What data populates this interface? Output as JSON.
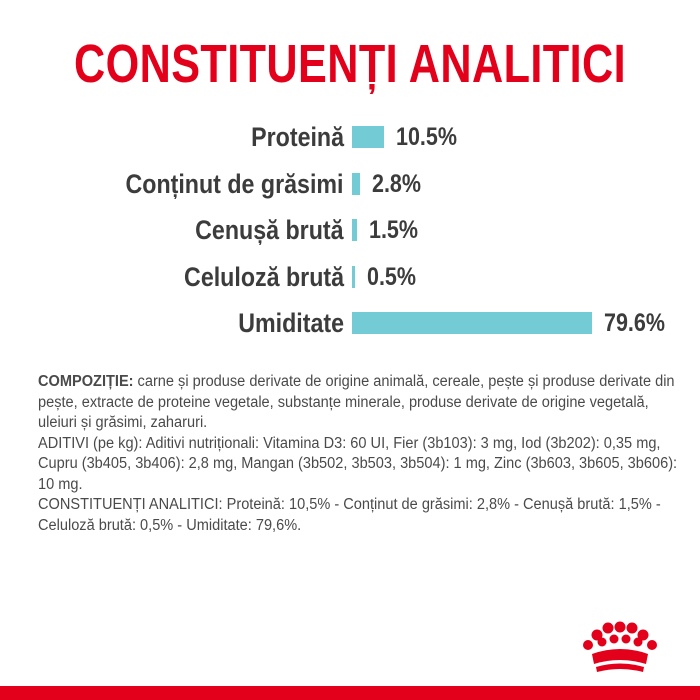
{
  "title": "CONSTITUENȚI ANALITICI",
  "chart_data": {
    "type": "bar",
    "orientation": "horizontal",
    "categories": [
      "Proteină",
      "Conținut de grăsimi",
      "Cenușă brută",
      "Celuloză brută",
      "Umiditate"
    ],
    "values": [
      10.5,
      2.8,
      1.5,
      0.5,
      79.6
    ],
    "value_labels": [
      "10.5%",
      "2.8%",
      "1.5%",
      "0.5%",
      "79.6%"
    ],
    "unit": "%",
    "xlim": [
      0,
      79.6
    ],
    "color": "#73cbd6",
    "grid": false,
    "legend": "none"
  },
  "composition": {
    "heading": "COMPOZIȚIE:",
    "composition_text": " carne și produse derivate de origine animală, cereale, pește și produse derivate din pește, extracte de proteine vegetale, substanțe minerale, produse derivate de origine vegetală, uleiuri și grăsimi, zaharuri.",
    "additives_text": "ADITIVI (pe kg): Aditivi nutriționali: Vitamina D3: 60 UI, Fier (3b103): 3  mg, Iod (3b202): 0,35  mg, Cupru (3b405, 3b406): 2,8  mg, Mangan (3b502, 3b503, 3b504): 1  mg, Zinc (3b603, 3b605, 3b606): 10  mg.",
    "analytical_text": "CONSTITUENȚI ANALITICI: Proteină: 10,5% - Conținut de grăsimi: 2,8% - Cenușă brută: 1,5% - Celuloză brută: 0,5% - Umiditate: 79,6%."
  },
  "brand": {
    "logo_icon": "royal-canin-crown-icon",
    "accent_color": "#e2001a"
  }
}
